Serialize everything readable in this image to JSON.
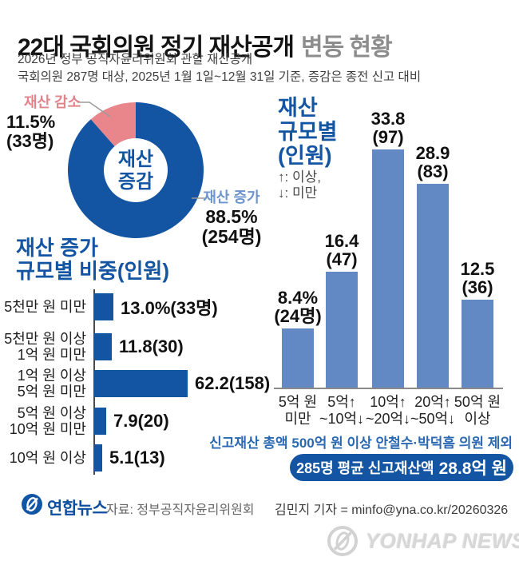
{
  "header": {
    "title_main": "22대 국회의원 정기 재산공개",
    "title_sub": "변동 현황",
    "subtitle1": "2026년 정부 공직자윤리위원회 관할 재산공개",
    "subtitle2": "국회의원 287명 대상, 2025년 1월 1일~12월 31일 기준, 증감은 종전 신고 대비"
  },
  "colors": {
    "dark_blue": "#1355a2",
    "light_blue": "#6289c4",
    "pink": "#e8868c",
    "pink_text": "#e2838b",
    "light_blue_text": "#6d95cc",
    "note_blue": "#2a69b2"
  },
  "chart_data": [
    {
      "type": "pie",
      "subtype": "donut",
      "center_label": "재산\n증감",
      "slices": [
        {
          "name": "재산 증가",
          "percent": 88.5,
          "count": 254,
          "percent_label": "88.5%",
          "count_label": "(254명)",
          "color": "#1355a2"
        },
        {
          "name": "재산 감소",
          "percent": 11.5,
          "count": 33,
          "percent_label": "11.5%",
          "count_label": "(33명)",
          "color": "#e8868c"
        }
      ]
    },
    {
      "type": "bar",
      "orientation": "horizontal",
      "title": "재산 증가\n규모별 비중(인원)",
      "categories": [
        "5천만 원 미만",
        "5천만 원 이상\n1억 원 미만",
        "1억 원 이상\n5억 원 미만",
        "5억 원 이상\n10억 원 미만",
        "10억 원 이상"
      ],
      "values": [
        13.0,
        11.8,
        62.2,
        7.9,
        5.1
      ],
      "counts": [
        33,
        30,
        158,
        20,
        13
      ],
      "value_labels": [
        "13.0%(33명)",
        "11.8(30)",
        "62.2(158)",
        "7.9(20)",
        "5.1(13)"
      ],
      "bar_color": "#1355a2",
      "xlim": [
        0,
        65
      ],
      "grid": false,
      "legend": "none"
    },
    {
      "type": "bar",
      "orientation": "vertical",
      "title": "재산\n규모별\n(인원)",
      "legend_note": "↑: 이상,\n↓: 미만",
      "categories": [
        "5억 원\n미만",
        "5억↑\n~10억↓",
        "10억↑\n~20억↓",
        "20억↑\n~50억↓",
        "50억 원\n이상"
      ],
      "values": [
        8.4,
        16.4,
        33.8,
        28.9,
        12.5
      ],
      "counts": [
        24,
        47,
        97,
        83,
        36
      ],
      "value_labels": [
        "8.4%\n(24명)",
        "16.4\n(47)",
        "33.8\n(97)",
        "28.9\n(83)",
        "12.5\n(36)"
      ],
      "bar_color": "#6289c4",
      "ylim": [
        0,
        40
      ],
      "grid": false,
      "legend": "none"
    }
  ],
  "notes": {
    "exclusion": "신고재산 총액 500억 원 이상 안철수·박덕흠 의원 제외",
    "average_prefix": "285명 평균 신고재산액",
    "average_value": "28.8억 원"
  },
  "footer": {
    "agency": "연합뉴스",
    "source": "자료: 정부공직자윤리위원회",
    "byline": "김민지 기자 = minfo@yna.co.kr/20260326",
    "watermark": "YONHAP NEWS"
  }
}
